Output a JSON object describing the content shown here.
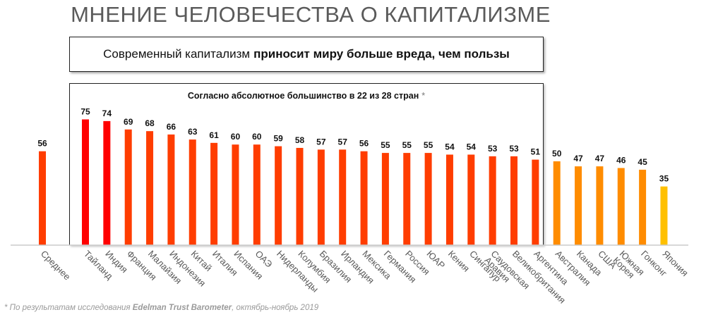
{
  "title": "МНЕНИЕ ЧЕЛОВЕЧЕСТВА О КАПИТАЛИЗМЕ",
  "headline": {
    "prefix": "Современный капитализм",
    "emphasis": "приносит миру больше вреда, чем пользы"
  },
  "majority_note": {
    "text": "Согласно абсолютное большинство в 22 из 28 стран",
    "marker": "*"
  },
  "footnote": {
    "prefix": "* По результатам исследования",
    "source": "Edelman Trust Barometer",
    "suffix": ", октябрь-ноябрь 2019"
  },
  "colors": {
    "average": "#FF3D00",
    "high": "#FF0000",
    "mid": "#FF3D00",
    "orange": "#FF8C00",
    "yellow": "#FFC000",
    "axis": "#cccccc"
  },
  "chart_data": {
    "type": "bar",
    "ylim": [
      0,
      80
    ],
    "categories": [
      "Среднее",
      "Тайланд",
      "Индия",
      "Франция",
      "Малайзия",
      "Индонезия",
      "Китай",
      "Италия",
      "Испания",
      "ОАЭ",
      "Нидерланды",
      "Колумбия",
      "Бразилия",
      "Ирландия",
      "Мексика",
      "Германия",
      "Россия",
      "ЮАР",
      "Кения",
      "Сингапур",
      "Саудовская Аравия",
      "Великобритания",
      "Аргентина",
      "Австралия",
      "Канада",
      "США",
      "Южная Корея",
      "Гонконг",
      "Япония"
    ],
    "values": [
      56,
      75,
      74,
      69,
      68,
      66,
      63,
      61,
      60,
      60,
      59,
      58,
      57,
      57,
      56,
      55,
      55,
      55,
      54,
      54,
      53,
      53,
      51,
      50,
      47,
      47,
      46,
      45,
      35
    ],
    "bar_colors": [
      "average",
      "high",
      "high",
      "mid",
      "mid",
      "mid",
      "mid",
      "mid",
      "mid",
      "mid",
      "mid",
      "mid",
      "mid",
      "mid",
      "mid",
      "mid",
      "mid",
      "mid",
      "mid",
      "mid",
      "mid",
      "mid",
      "mid",
      "orange",
      "orange",
      "orange",
      "orange",
      "orange",
      "yellow"
    ]
  }
}
